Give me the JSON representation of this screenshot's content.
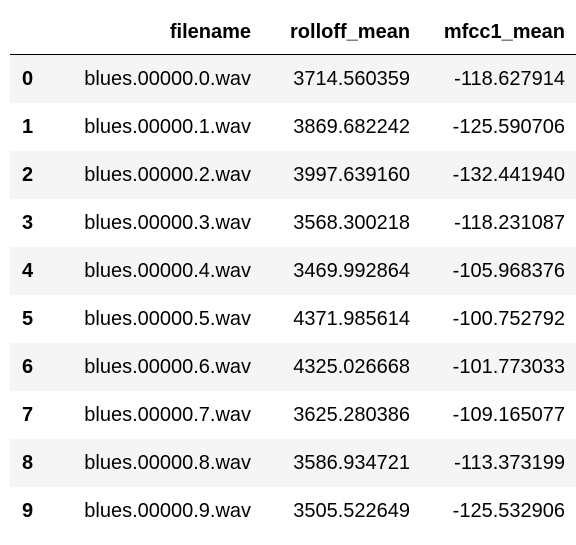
{
  "table": {
    "index_header": "",
    "columns": [
      "filename",
      "rolloff_mean",
      "mfcc1_mean"
    ],
    "rows": [
      {
        "index": "0",
        "filename": "blues.00000.0.wav",
        "rolloff_mean": "3714.560359",
        "mfcc1_mean": "-118.627914"
      },
      {
        "index": "1",
        "filename": "blues.00000.1.wav",
        "rolloff_mean": "3869.682242",
        "mfcc1_mean": "-125.590706"
      },
      {
        "index": "2",
        "filename": "blues.00000.2.wav",
        "rolloff_mean": "3997.639160",
        "mfcc1_mean": "-132.441940"
      },
      {
        "index": "3",
        "filename": "blues.00000.3.wav",
        "rolloff_mean": "3568.300218",
        "mfcc1_mean": "-118.231087"
      },
      {
        "index": "4",
        "filename": "blues.00000.4.wav",
        "rolloff_mean": "3469.992864",
        "mfcc1_mean": "-105.968376"
      },
      {
        "index": "5",
        "filename": "blues.00000.5.wav",
        "rolloff_mean": "4371.985614",
        "mfcc1_mean": "-100.752792"
      },
      {
        "index": "6",
        "filename": "blues.00000.6.wav",
        "rolloff_mean": "4325.026668",
        "mfcc1_mean": "-101.773033"
      },
      {
        "index": "7",
        "filename": "blues.00000.7.wav",
        "rolloff_mean": "3625.280386",
        "mfcc1_mean": "-109.165077"
      },
      {
        "index": "8",
        "filename": "blues.00000.8.wav",
        "rolloff_mean": "3586.934721",
        "mfcc1_mean": "-113.373199"
      },
      {
        "index": "9",
        "filename": "blues.00000.9.wav",
        "rolloff_mean": "3505.522649",
        "mfcc1_mean": "-125.532906"
      }
    ]
  },
  "colors": {
    "odd_row_background": "#f5f5f5",
    "even_row_background": "#ffffff",
    "header_border": "#000000",
    "text": "#000000"
  }
}
